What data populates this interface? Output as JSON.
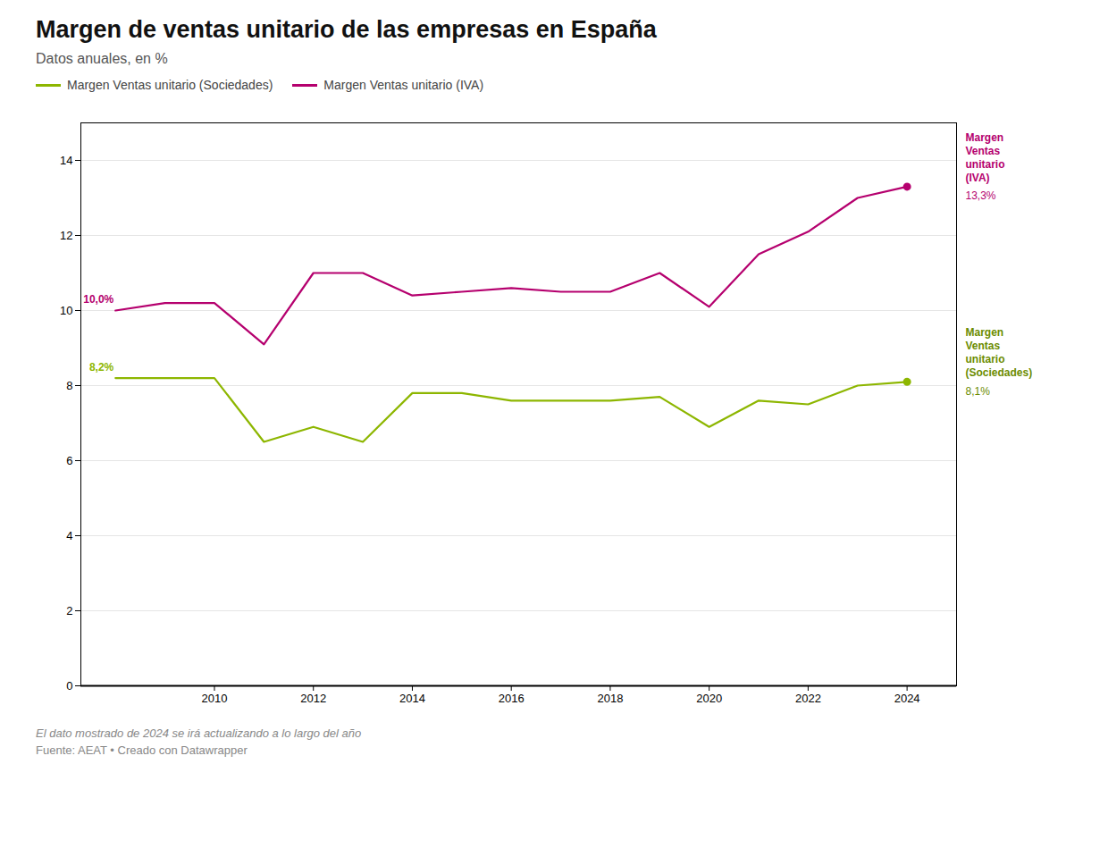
{
  "chart_data": {
    "type": "line",
    "title": "Margen de ventas unitario de las empresas en España",
    "subtitle": "Datos anuales, en %",
    "footnote": "El dato mostrado de 2024 se irá actualizando a lo largo del año",
    "source": "Fuente: AEAT • Creado con Datawrapper",
    "x": [
      2008,
      2009,
      2010,
      2011,
      2012,
      2013,
      2014,
      2015,
      2016,
      2017,
      2018,
      2019,
      2020,
      2021,
      2022,
      2023,
      2024
    ],
    "series": [
      {
        "name": "Margen Ventas unitario (Sociedades)",
        "color": "#8db600",
        "values": [
          8.2,
          8.2,
          8.2,
          6.5,
          6.9,
          6.5,
          7.8,
          7.8,
          7.6,
          7.6,
          7.6,
          7.7,
          6.9,
          7.6,
          7.5,
          8.0,
          8.1
        ]
      },
      {
        "name": "Margen Ventas unitario (IVA)",
        "color": "#b5006e",
        "values": [
          10.0,
          10.2,
          10.2,
          9.1,
          11.0,
          11.0,
          10.4,
          10.5,
          10.6,
          10.5,
          10.5,
          11.0,
          10.1,
          11.5,
          12.1,
          13.0,
          13.3
        ]
      }
    ],
    "xlim": [
      2007.3,
      2025.0
    ],
    "xticks": [
      2010,
      2012,
      2014,
      2016,
      2018,
      2020,
      2022,
      2024
    ],
    "ylim": [
      0,
      15
    ],
    "yticks": [
      0,
      2,
      4,
      6,
      8,
      10,
      12,
      14
    ],
    "grid": true,
    "legend": "upper left",
    "start_labels": [
      {
        "x": 2008,
        "y": 8.2,
        "text": "8,2%",
        "color": "#8db600"
      },
      {
        "x": 2008,
        "y": 10.0,
        "text": "10,0%",
        "color": "#b5006e"
      }
    ],
    "end_labels": [
      {
        "x": 2024,
        "y": 13.3,
        "text": "Margen\nVentas\nunitario\n(IVA)",
        "value_label": "13,3%",
        "color": "#b5006e"
      },
      {
        "x": 2024,
        "y": 8.1,
        "text": "Margen\nVentas\nunitario\n(Sociedades)",
        "value_label": "8,1%",
        "color": "#6b8c00"
      }
    ]
  }
}
